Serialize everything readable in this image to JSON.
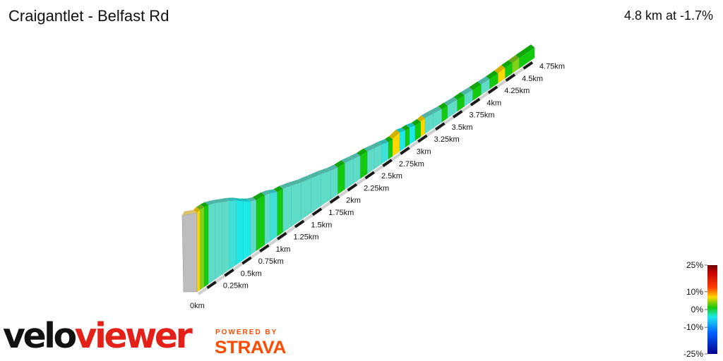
{
  "header": {
    "title": "Craigantlet - Belfast Rd",
    "summary": "4.8 km at -1.7%"
  },
  "branding": {
    "logo_part1": "velo",
    "logo_part2": "viewer",
    "powered_by": "POWERED BY",
    "strava": "STRAVA"
  },
  "colors": {
    "side_wall": "#bdbdbd",
    "steep_positive": "#8b0000",
    "mid_positive": "#ff3b00",
    "low_positive": "#ffd700",
    "flat": "#15c90f",
    "low_negative": "#1ee8e8",
    "mid_negative": "#0060ff",
    "steep_negative": "#050090"
  },
  "chart_data": {
    "type": "area",
    "title": "Craigantlet - Belfast Rd",
    "distance_unit": "km",
    "total_distance_km": 4.8,
    "average_gradient_percent": -1.7,
    "distance_ticks": [
      "0km",
      "0.25km",
      "0.5km",
      "0.75km",
      "1km",
      "1.25km",
      "1.5km",
      "1.75km",
      "2km",
      "2.25km",
      "2.5km",
      "2.75km",
      "3km",
      "3.25km",
      "3.5km",
      "3.75km",
      "4km",
      "4.25km",
      "4.5km",
      "4.75km"
    ],
    "tick_values_km": [
      0,
      0.25,
      0.5,
      0.75,
      1,
      1.25,
      1.5,
      1.75,
      2,
      2.25,
      2.5,
      2.75,
      3,
      3.25,
      3.5,
      3.75,
      4,
      4.25,
      4.5,
      4.75
    ],
    "segments": [
      {
        "start_km": 0.0,
        "end_km": 0.04,
        "gradient": 4
      },
      {
        "start_km": 0.04,
        "end_km": 0.1,
        "gradient": 1
      },
      {
        "start_km": 0.1,
        "end_km": 0.16,
        "gradient": 0
      },
      {
        "start_km": 0.16,
        "end_km": 0.26,
        "gradient": -2
      },
      {
        "start_km": 0.26,
        "end_km": 0.36,
        "gradient": -3
      },
      {
        "start_km": 0.36,
        "end_km": 0.46,
        "gradient": -3
      },
      {
        "start_km": 0.46,
        "end_km": 0.56,
        "gradient": -4
      },
      {
        "start_km": 0.56,
        "end_km": 0.66,
        "gradient": -6
      },
      {
        "start_km": 0.66,
        "end_km": 0.76,
        "gradient": -5
      },
      {
        "start_km": 0.76,
        "end_km": 0.84,
        "gradient": -3
      },
      {
        "start_km": 0.84,
        "end_km": 0.96,
        "gradient": 0
      },
      {
        "start_km": 0.96,
        "end_km": 1.04,
        "gradient": -2
      },
      {
        "start_km": 1.04,
        "end_km": 1.14,
        "gradient": -4
      },
      {
        "start_km": 1.14,
        "end_km": 1.22,
        "gradient": 0
      },
      {
        "start_km": 1.22,
        "end_km": 1.34,
        "gradient": -2
      },
      {
        "start_km": 1.34,
        "end_km": 1.48,
        "gradient": -3
      },
      {
        "start_km": 1.48,
        "end_km": 1.62,
        "gradient": -2
      },
      {
        "start_km": 1.62,
        "end_km": 1.76,
        "gradient": -2
      },
      {
        "start_km": 1.76,
        "end_km": 1.9,
        "gradient": -3
      },
      {
        "start_km": 1.9,
        "end_km": 2.0,
        "gradient": -2
      },
      {
        "start_km": 2.0,
        "end_km": 2.1,
        "gradient": 0
      },
      {
        "start_km": 2.1,
        "end_km": 2.22,
        "gradient": -2
      },
      {
        "start_km": 2.22,
        "end_km": 2.32,
        "gradient": -2
      },
      {
        "start_km": 2.32,
        "end_km": 2.42,
        "gradient": 0
      },
      {
        "start_km": 2.42,
        "end_km": 2.52,
        "gradient": -3
      },
      {
        "start_km": 2.52,
        "end_km": 2.62,
        "gradient": -2
      },
      {
        "start_km": 2.62,
        "end_km": 2.72,
        "gradient": -4
      },
      {
        "start_km": 2.72,
        "end_km": 2.78,
        "gradient": 0
      },
      {
        "start_km": 2.78,
        "end_km": 2.88,
        "gradient": 5
      },
      {
        "start_km": 2.88,
        "end_km": 2.96,
        "gradient": -5
      },
      {
        "start_km": 2.96,
        "end_km": 3.02,
        "gradient": 0
      },
      {
        "start_km": 3.02,
        "end_km": 3.1,
        "gradient": -5
      },
      {
        "start_km": 3.1,
        "end_km": 3.18,
        "gradient": 0
      },
      {
        "start_km": 3.18,
        "end_km": 3.24,
        "gradient": 4
      },
      {
        "start_km": 3.24,
        "end_km": 3.36,
        "gradient": -2
      },
      {
        "start_km": 3.36,
        "end_km": 3.48,
        "gradient": -3
      },
      {
        "start_km": 3.48,
        "end_km": 3.56,
        "gradient": -1
      },
      {
        "start_km": 3.56,
        "end_km": 3.7,
        "gradient": -2
      },
      {
        "start_km": 3.7,
        "end_km": 3.8,
        "gradient": 0
      },
      {
        "start_km": 3.8,
        "end_km": 3.92,
        "gradient": -2
      },
      {
        "start_km": 3.92,
        "end_km": 4.04,
        "gradient": -1
      },
      {
        "start_km": 4.04,
        "end_km": 4.16,
        "gradient": -2
      },
      {
        "start_km": 4.16,
        "end_km": 4.28,
        "gradient": 0
      },
      {
        "start_km": 4.28,
        "end_km": 4.38,
        "gradient": 3
      },
      {
        "start_km": 4.38,
        "end_km": 4.48,
        "gradient": 0
      },
      {
        "start_km": 4.48,
        "end_km": 4.58,
        "gradient": 2
      },
      {
        "start_km": 4.58,
        "end_km": 4.8,
        "gradient": 0
      }
    ],
    "legend": {
      "title": "",
      "gradient_labels": [
        "25%",
        "10%",
        "0%",
        "-10%",
        "-25%"
      ],
      "gradient_values": [
        25,
        10,
        0,
        -10,
        -25
      ],
      "range": [
        -25,
        25
      ]
    }
  }
}
